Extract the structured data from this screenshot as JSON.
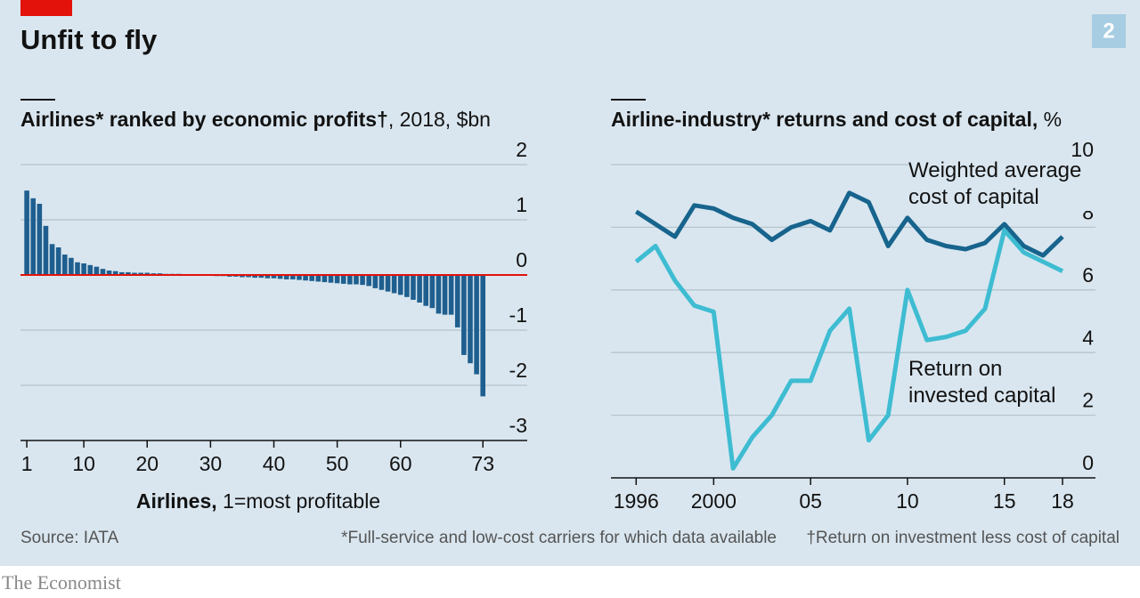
{
  "title": "Unfit to fly",
  "badge": "2",
  "source": "Source: IATA",
  "note_star": "*Full-service and low-cost carriers for which data available",
  "note_dagger": "†Return on investment less cost of capital",
  "brand": "The Economist",
  "chart_data": [
    {
      "type": "bar",
      "title": "Airlines* ranked by economic profits†",
      "subtitle": ", 2018, $bn",
      "xlabel": "Airlines,",
      "xlabel_detail": "1=most profitable",
      "color": "#1f5f8f",
      "zero_line_color": "#e3120b",
      "grid": true,
      "x": [
        1,
        2,
        3,
        4,
        5,
        6,
        7,
        8,
        9,
        10,
        11,
        12,
        13,
        14,
        15,
        16,
        17,
        18,
        19,
        20,
        21,
        22,
        23,
        24,
        25,
        26,
        27,
        28,
        29,
        30,
        31,
        32,
        33,
        34,
        35,
        36,
        37,
        38,
        39,
        40,
        41,
        42,
        43,
        44,
        45,
        46,
        47,
        48,
        49,
        50,
        51,
        52,
        53,
        54,
        55,
        56,
        57,
        58,
        59,
        60,
        61,
        62,
        63,
        64,
        65,
        66,
        67,
        68,
        69,
        70,
        71,
        72,
        73
      ],
      "values": [
        1.53,
        1.39,
        1.29,
        0.89,
        0.56,
        0.5,
        0.37,
        0.31,
        0.23,
        0.21,
        0.18,
        0.15,
        0.11,
        0.08,
        0.07,
        0.05,
        0.05,
        0.04,
        0.04,
        0.04,
        0.03,
        0.03,
        0.02,
        0.02,
        0.02,
        0.01,
        0.01,
        0,
        -0.01,
        -0.01,
        -0.02,
        -0.02,
        -0.03,
        -0.03,
        -0.04,
        -0.04,
        -0.05,
        -0.05,
        -0.06,
        -0.06,
        -0.07,
        -0.08,
        -0.08,
        -0.09,
        -0.1,
        -0.11,
        -0.12,
        -0.13,
        -0.14,
        -0.15,
        -0.16,
        -0.17,
        -0.17,
        -0.18,
        -0.2,
        -0.24,
        -0.27,
        -0.3,
        -0.33,
        -0.36,
        -0.4,
        -0.45,
        -0.5,
        -0.56,
        -0.6,
        -0.7,
        -0.72,
        -0.72,
        -0.95,
        -1.45,
        -1.6,
        -1.8,
        -2.2
      ],
      "xlim": [
        0,
        80
      ],
      "xticks": [
        1,
        10,
        20,
        30,
        40,
        50,
        60,
        73
      ],
      "ylim": [
        -3,
        2
      ],
      "yticks": [
        2,
        1,
        0,
        -1,
        -2,
        -3
      ]
    },
    {
      "type": "line",
      "title": "Airline-industry* returns and cost of capital,",
      "subtitle": " %",
      "grid": true,
      "x": [
        1996,
        1997,
        1998,
        1999,
        2000,
        2001,
        2002,
        2003,
        2004,
        2005,
        2006,
        2007,
        2008,
        2009,
        2010,
        2011,
        2012,
        2013,
        2014,
        2015,
        2016,
        2017,
        2018
      ],
      "series": [
        {
          "name": "Weighted average cost of capital",
          "color": "#17648d",
          "values": [
            8.5,
            8.1,
            7.7,
            8.7,
            8.6,
            8.3,
            8.1,
            7.6,
            8.0,
            8.2,
            7.9,
            9.1,
            8.8,
            7.4,
            8.3,
            7.6,
            7.4,
            7.3,
            7.5,
            8.1,
            7.4,
            7.1,
            7.7
          ]
        },
        {
          "name": "Return on invested capital",
          "color": "#3ebcd2",
          "values": [
            6.9,
            7.4,
            6.3,
            5.5,
            5.3,
            0.3,
            1.3,
            2.0,
            3.1,
            3.1,
            4.7,
            5.4,
            1.2,
            2.0,
            6.0,
            4.4,
            4.5,
            4.7,
            5.4,
            7.9,
            7.2,
            6.9,
            6.6
          ]
        }
      ],
      "xlim": [
        1994.7,
        2019.7
      ],
      "xticks": [
        1996,
        2000,
        {
          "value": 2005,
          "label": "05"
        },
        {
          "value": 2010,
          "label": "10"
        },
        {
          "value": 2015,
          "label": "15"
        },
        {
          "value": 2018,
          "label": "18"
        }
      ],
      "ylim": [
        0,
        10
      ],
      "yticks": [
        10,
        8,
        6,
        4,
        2,
        0
      ]
    }
  ]
}
